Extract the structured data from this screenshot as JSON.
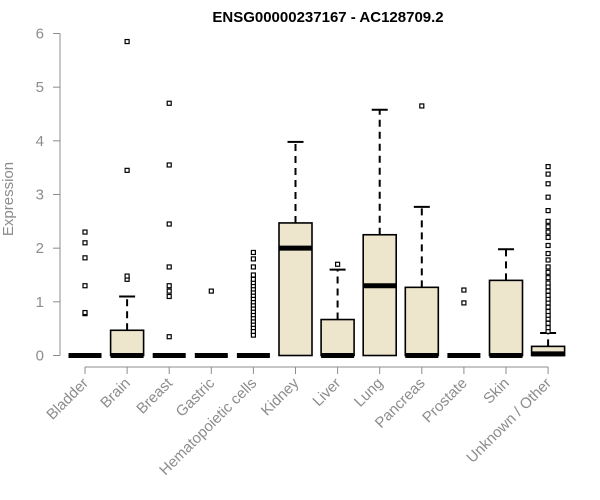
{
  "chart_data": {
    "type": "boxplot",
    "title": "ENSG00000237167 - AC128709.2",
    "xlabel": "",
    "ylabel": "Expression",
    "ylim": [
      0,
      6
    ],
    "yticks": [
      0,
      1,
      2,
      3,
      4,
      5,
      6
    ],
    "box_fill": "#ede6cc",
    "box_stroke": "#000000",
    "axis_color": "#8c8c8c",
    "categories": [
      "Bladder",
      "Brain",
      "Breast",
      "Gastric",
      "Hematopoietic cells",
      "Kidney",
      "Liver",
      "Lung",
      "Pancreas",
      "Prostate",
      "Skin",
      "Unknown / Other"
    ],
    "boxes": [
      {
        "q1": 0,
        "median": 0,
        "q3": 0,
        "whisker_low": 0,
        "whisker_high": 0,
        "outliers": [
          0.78,
          0.8,
          1.3,
          1.82,
          2.1,
          2.3
        ]
      },
      {
        "q1": 0,
        "median": 0,
        "q3": 0.47,
        "whisker_low": 0,
        "whisker_high": 1.1,
        "outliers": [
          1.42,
          1.48,
          3.45,
          5.85
        ]
      },
      {
        "q1": 0,
        "median": 0,
        "q3": 0,
        "whisker_low": 0,
        "whisker_high": 0,
        "outliers": [
          0.35,
          1.1,
          1.2,
          1.3,
          1.65,
          2.45,
          3.55,
          4.7
        ]
      },
      {
        "q1": 0,
        "median": 0,
        "q3": 0,
        "whisker_low": 0,
        "whisker_high": 0,
        "outliers": [
          1.2
        ]
      },
      {
        "q1": 0,
        "median": 0,
        "q3": 0,
        "whisker_low": 0,
        "whisker_high": 0,
        "outliers": [
          0.38,
          0.45,
          0.52,
          0.58,
          0.64,
          0.7,
          0.76,
          0.82,
          0.88,
          0.94,
          1.0,
          1.06,
          1.12,
          1.18,
          1.24,
          1.3,
          1.36,
          1.42,
          1.5,
          1.65,
          1.8,
          1.92
        ]
      },
      {
        "q1": 0,
        "median": 2.0,
        "q3": 2.47,
        "whisker_low": 0,
        "whisker_high": 3.98,
        "outliers": []
      },
      {
        "q1": 0,
        "median": 0,
        "q3": 0.67,
        "whisker_low": 0,
        "whisker_high": 1.6,
        "outliers": [
          1.7
        ]
      },
      {
        "q1": 0,
        "median": 1.3,
        "q3": 2.25,
        "whisker_low": 0,
        "whisker_high": 4.58,
        "outliers": []
      },
      {
        "q1": 0,
        "median": 0,
        "q3": 1.27,
        "whisker_low": 0,
        "whisker_high": 2.77,
        "outliers": [
          4.65
        ]
      },
      {
        "q1": 0,
        "median": 0,
        "q3": 0,
        "whisker_low": 0,
        "whisker_high": 0,
        "outliers": [
          0.98,
          1.22
        ]
      },
      {
        "q1": 0,
        "median": 0,
        "q3": 1.4,
        "whisker_low": 0,
        "whisker_high": 1.98,
        "outliers": []
      },
      {
        "q1": 0,
        "median": 0.03,
        "q3": 0.17,
        "whisker_low": 0,
        "whisker_high": 0.42,
        "outliers": [
          0.45,
          0.52,
          0.6,
          0.68,
          0.75,
          0.82,
          0.9,
          0.98,
          1.05,
          1.12,
          1.2,
          1.28,
          1.35,
          1.45,
          1.55,
          1.65,
          1.78,
          1.9,
          2.05,
          2.2,
          2.3,
          2.4,
          2.5,
          2.7,
          2.95,
          3.2,
          3.38,
          3.52
        ]
      }
    ]
  }
}
